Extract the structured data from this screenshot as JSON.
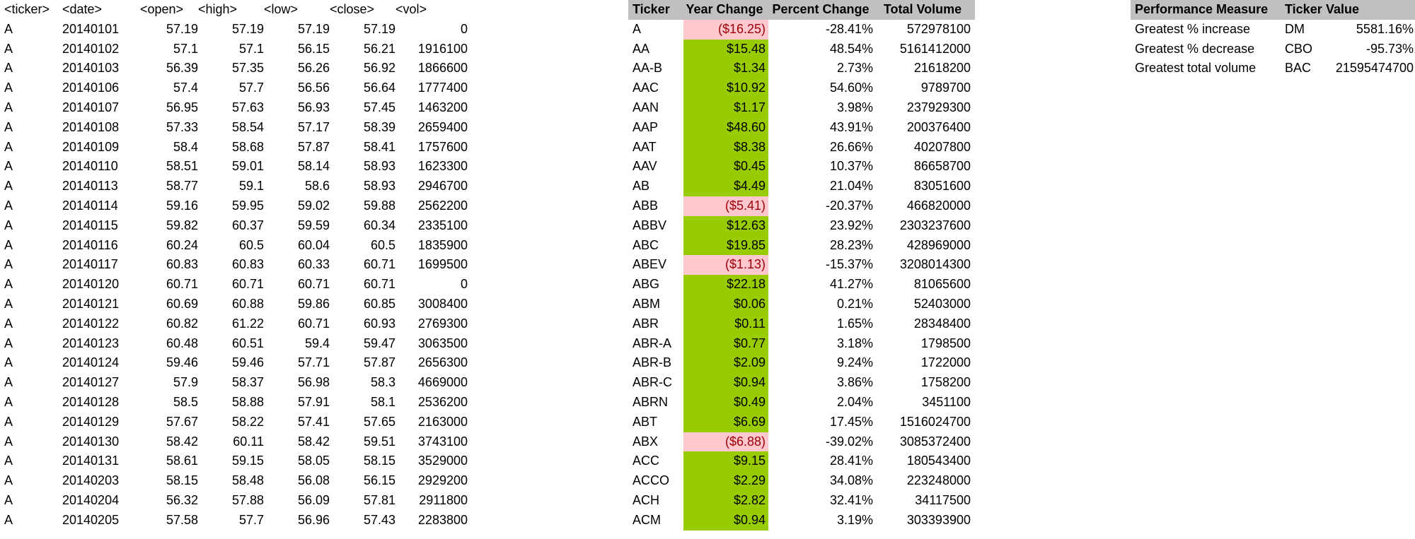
{
  "raw": {
    "headers": [
      "<ticker>",
      "<date>",
      "<open>",
      "<high>",
      "<low>",
      "<close>",
      "<vol>"
    ],
    "rows": [
      [
        "A",
        "20140101",
        "57.19",
        "57.19",
        "57.19",
        "57.19",
        "0"
      ],
      [
        "A",
        "20140102",
        "57.1",
        "57.1",
        "56.15",
        "56.21",
        "1916100"
      ],
      [
        "A",
        "20140103",
        "56.39",
        "57.35",
        "56.26",
        "56.92",
        "1866600"
      ],
      [
        "A",
        "20140106",
        "57.4",
        "57.7",
        "56.56",
        "56.64",
        "1777400"
      ],
      [
        "A",
        "20140107",
        "56.95",
        "57.63",
        "56.93",
        "57.45",
        "1463200"
      ],
      [
        "A",
        "20140108",
        "57.33",
        "58.54",
        "57.17",
        "58.39",
        "2659400"
      ],
      [
        "A",
        "20140109",
        "58.4",
        "58.68",
        "57.87",
        "58.41",
        "1757600"
      ],
      [
        "A",
        "20140110",
        "58.51",
        "59.01",
        "58.14",
        "58.93",
        "1623300"
      ],
      [
        "A",
        "20140113",
        "58.77",
        "59.1",
        "58.6",
        "58.93",
        "2946700"
      ],
      [
        "A",
        "20140114",
        "59.16",
        "59.95",
        "59.02",
        "59.88",
        "2562200"
      ],
      [
        "A",
        "20140115",
        "59.82",
        "60.37",
        "59.59",
        "60.34",
        "2335100"
      ],
      [
        "A",
        "20140116",
        "60.24",
        "60.5",
        "60.04",
        "60.5",
        "1835900"
      ],
      [
        "A",
        "20140117",
        "60.83",
        "60.83",
        "60.33",
        "60.71",
        "1699500"
      ],
      [
        "A",
        "20140120",
        "60.71",
        "60.71",
        "60.71",
        "60.71",
        "0"
      ],
      [
        "A",
        "20140121",
        "60.69",
        "60.88",
        "59.86",
        "60.85",
        "3008400"
      ],
      [
        "A",
        "20140122",
        "60.82",
        "61.22",
        "60.71",
        "60.93",
        "2769300"
      ],
      [
        "A",
        "20140123",
        "60.48",
        "60.51",
        "59.4",
        "59.47",
        "3063500"
      ],
      [
        "A",
        "20140124",
        "59.46",
        "59.46",
        "57.71",
        "57.87",
        "2656300"
      ],
      [
        "A",
        "20140127",
        "57.9",
        "58.37",
        "56.98",
        "58.3",
        "4669000"
      ],
      [
        "A",
        "20140128",
        "58.5",
        "58.88",
        "57.91",
        "58.1",
        "2536200"
      ],
      [
        "A",
        "20140129",
        "57.67",
        "58.22",
        "57.41",
        "57.65",
        "2163000"
      ],
      [
        "A",
        "20140130",
        "58.42",
        "60.11",
        "58.42",
        "59.51",
        "3743100"
      ],
      [
        "A",
        "20140131",
        "58.61",
        "59.15",
        "58.05",
        "58.15",
        "3529000"
      ],
      [
        "A",
        "20140203",
        "58.15",
        "58.48",
        "56.08",
        "56.15",
        "2929200"
      ],
      [
        "A",
        "20140204",
        "56.32",
        "57.88",
        "56.09",
        "57.81",
        "2911800"
      ],
      [
        "A",
        "20140205",
        "57.58",
        "57.7",
        "56.96",
        "57.43",
        "2283800"
      ]
    ]
  },
  "summary": {
    "headers": [
      "Ticker",
      "Year Change",
      "Percent Change",
      "Total Volume"
    ],
    "colors": {
      "positive": "#99cc00",
      "negative": "#ffc7ce",
      "negative_text": "#9c0006"
    },
    "rows": [
      {
        "ticker": "A",
        "change": "($16.25)",
        "sign": "neg",
        "pct": "-28.41%",
        "vol": "572978100"
      },
      {
        "ticker": "AA",
        "change": "$15.48",
        "sign": "pos",
        "pct": "48.54%",
        "vol": "5161412000"
      },
      {
        "ticker": "AA-B",
        "change": "$1.34",
        "sign": "pos",
        "pct": "2.73%",
        "vol": "21618200"
      },
      {
        "ticker": "AAC",
        "change": "$10.92",
        "sign": "pos",
        "pct": "54.60%",
        "vol": "9789700"
      },
      {
        "ticker": "AAN",
        "change": "$1.17",
        "sign": "pos",
        "pct": "3.98%",
        "vol": "237929300"
      },
      {
        "ticker": "AAP",
        "change": "$48.60",
        "sign": "pos",
        "pct": "43.91%",
        "vol": "200376400"
      },
      {
        "ticker": "AAT",
        "change": "$8.38",
        "sign": "pos",
        "pct": "26.66%",
        "vol": "40207800"
      },
      {
        "ticker": "AAV",
        "change": "$0.45",
        "sign": "pos",
        "pct": "10.37%",
        "vol": "86658700"
      },
      {
        "ticker": "AB",
        "change": "$4.49",
        "sign": "pos",
        "pct": "21.04%",
        "vol": "83051600"
      },
      {
        "ticker": "ABB",
        "change": "($5.41)",
        "sign": "neg",
        "pct": "-20.37%",
        "vol": "466820000"
      },
      {
        "ticker": "ABBV",
        "change": "$12.63",
        "sign": "pos",
        "pct": "23.92%",
        "vol": "2303237600"
      },
      {
        "ticker": "ABC",
        "change": "$19.85",
        "sign": "pos",
        "pct": "28.23%",
        "vol": "428969000"
      },
      {
        "ticker": "ABEV",
        "change": "($1.13)",
        "sign": "neg",
        "pct": "-15.37%",
        "vol": "3208014300"
      },
      {
        "ticker": "ABG",
        "change": "$22.18",
        "sign": "pos",
        "pct": "41.27%",
        "vol": "81065600"
      },
      {
        "ticker": "ABM",
        "change": "$0.06",
        "sign": "pos",
        "pct": "0.21%",
        "vol": "52403000"
      },
      {
        "ticker": "ABR",
        "change": "$0.11",
        "sign": "pos",
        "pct": "1.65%",
        "vol": "28348400"
      },
      {
        "ticker": "ABR-A",
        "change": "$0.77",
        "sign": "pos",
        "pct": "3.18%",
        "vol": "1798500"
      },
      {
        "ticker": "ABR-B",
        "change": "$2.09",
        "sign": "pos",
        "pct": "9.24%",
        "vol": "1722000"
      },
      {
        "ticker": "ABR-C",
        "change": "$0.94",
        "sign": "pos",
        "pct": "3.86%",
        "vol": "1758200"
      },
      {
        "ticker": "ABRN",
        "change": "$0.49",
        "sign": "pos",
        "pct": "2.04%",
        "vol": "3451100"
      },
      {
        "ticker": "ABT",
        "change": "$6.69",
        "sign": "pos",
        "pct": "17.45%",
        "vol": "1516024700"
      },
      {
        "ticker": "ABX",
        "change": "($6.88)",
        "sign": "neg",
        "pct": "-39.02%",
        "vol": "3085372400"
      },
      {
        "ticker": "ACC",
        "change": "$9.15",
        "sign": "pos",
        "pct": "28.41%",
        "vol": "180543400"
      },
      {
        "ticker": "ACCO",
        "change": "$2.29",
        "sign": "pos",
        "pct": "34.08%",
        "vol": "223248000"
      },
      {
        "ticker": "ACH",
        "change": "$2.82",
        "sign": "pos",
        "pct": "32.41%",
        "vol": "34117500"
      },
      {
        "ticker": "ACM",
        "change": "$0.94",
        "sign": "pos",
        "pct": "3.19%",
        "vol": "303393900"
      }
    ]
  },
  "performance": {
    "headers": [
      "Performance Measure",
      "Ticker",
      "Value"
    ],
    "rows": [
      {
        "measure": "Greatest % increase",
        "ticker": "DM",
        "value": "5581.16%"
      },
      {
        "measure": "Greatest % decrease",
        "ticker": "CBO",
        "value": "-95.73%"
      },
      {
        "measure": "Greatest total volume",
        "ticker": "BAC",
        "value": "21595474700"
      }
    ]
  }
}
